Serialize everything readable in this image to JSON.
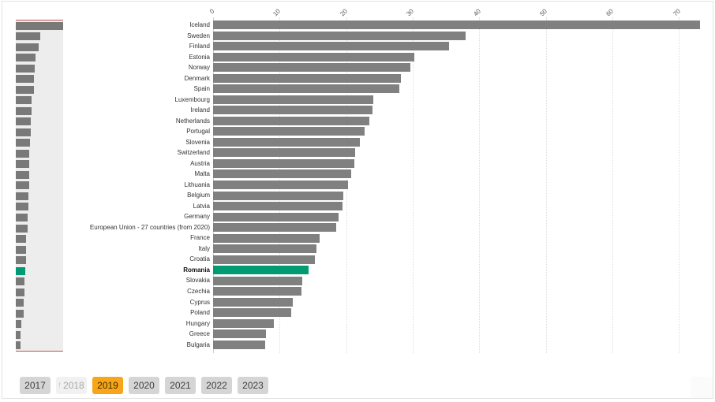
{
  "chart_data": {
    "type": "bar",
    "orientation": "horizontal",
    "title": "",
    "xlabel": "",
    "ylabel": "",
    "xlim": [
      0,
      73.5
    ],
    "xticks": [
      0,
      10,
      20,
      30,
      40,
      50,
      60,
      70
    ],
    "grid": "vertical-dotted",
    "legend": "none",
    "categories": [
      "Iceland",
      "Sweden",
      "Finland",
      "Estonia",
      "Norway",
      "Denmark",
      "Spain",
      "Luxembourg",
      "Ireland",
      "Netherlands",
      "Portugal",
      "Slovenia",
      "Switzerland",
      "Austria",
      "Malta",
      "Lithuania",
      "Belgium",
      "Latvia",
      "Germany",
      "European Union - 27 countries (from 2020)",
      "France",
      "Italy",
      "Croatia",
      "Romania",
      "Slovakia",
      "Czechia",
      "Cyprus",
      "Poland",
      "Hungary",
      "Greece",
      "Bulgaria"
    ],
    "values": [
      73.2,
      37.9,
      35.4,
      30.2,
      29.6,
      28.2,
      28.0,
      24.1,
      24.0,
      23.5,
      22.8,
      22.0,
      21.3,
      21.2,
      20.7,
      20.3,
      19.6,
      19.4,
      18.9,
      18.5,
      16.0,
      15.5,
      15.3,
      14.4,
      13.4,
      13.3,
      12.0,
      11.7,
      9.1,
      7.9,
      7.8
    ],
    "highlight": {
      "category": "Romania",
      "color": "#009B72"
    },
    "bar_color": "#808080"
  },
  "minimap": {
    "background": "#EDEDED",
    "frame_color": "#C9504B",
    "bar_color": "#797979"
  },
  "toolbar": {
    "years": [
      {
        "label": "2017",
        "state": "default"
      },
      {
        "label": "2018",
        "state": "flagged",
        "prefix": "!"
      },
      {
        "label": "2019",
        "state": "selected"
      },
      {
        "label": "2020",
        "state": "default"
      },
      {
        "label": "2021",
        "state": "default"
      },
      {
        "label": "2022",
        "state": "default"
      },
      {
        "label": "2023",
        "state": "default"
      }
    ],
    "selected_year": "2019"
  },
  "colors": {
    "selected_year_bg": "#F9A51A",
    "year_bg": "#D5D5D5",
    "flagged_year_bg": "#F1F1F1"
  }
}
